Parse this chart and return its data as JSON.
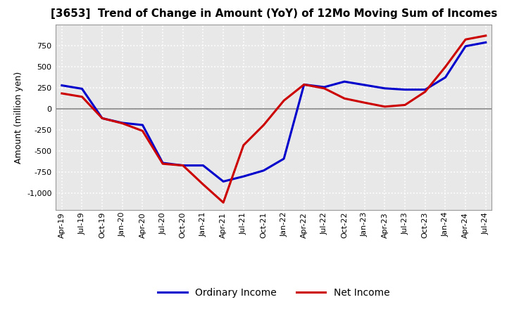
{
  "title": "[3653]  Trend of Change in Amount (YoY) of 12Mo Moving Sum of Incomes",
  "ylabel": "Amount (million yen)",
  "x_labels": [
    "Apr-19",
    "Jul-19",
    "Oct-19",
    "Jan-20",
    "Apr-20",
    "Jul-20",
    "Oct-20",
    "Jan-21",
    "Apr-21",
    "Jul-21",
    "Oct-21",
    "Jan-22",
    "Apr-22",
    "Jul-22",
    "Oct-22",
    "Jan-23",
    "Apr-23",
    "Jul-23",
    "Oct-23",
    "Jan-24",
    "Apr-24",
    "Jul-24"
  ],
  "ordinary_income": [
    280,
    240,
    -110,
    -165,
    -190,
    -640,
    -670,
    -670,
    -860,
    -800,
    -730,
    -590,
    290,
    260,
    325,
    285,
    245,
    230,
    230,
    375,
    745,
    790
  ],
  "net_income": [
    185,
    145,
    -110,
    -170,
    -260,
    -650,
    -670,
    -895,
    -1110,
    -430,
    -190,
    100,
    290,
    245,
    125,
    75,
    28,
    48,
    205,
    500,
    825,
    870
  ],
  "ordinary_color": "#0000cc",
  "net_color": "#cc0000",
  "bg_color": "#ffffff",
  "plot_bg_color": "#e8e8e8",
  "grid_color": "#ffffff",
  "zero_line_color": "#888888",
  "ylim": [
    -1200,
    1000
  ],
  "yticks": [
    -1000,
    -750,
    -500,
    -250,
    0,
    250,
    500,
    750
  ],
  "legend_ordinary": "Ordinary Income",
  "legend_net": "Net Income",
  "line_width": 2.2,
  "title_fontsize": 11,
  "ylabel_fontsize": 9,
  "tick_fontsize": 8,
  "legend_fontsize": 10
}
